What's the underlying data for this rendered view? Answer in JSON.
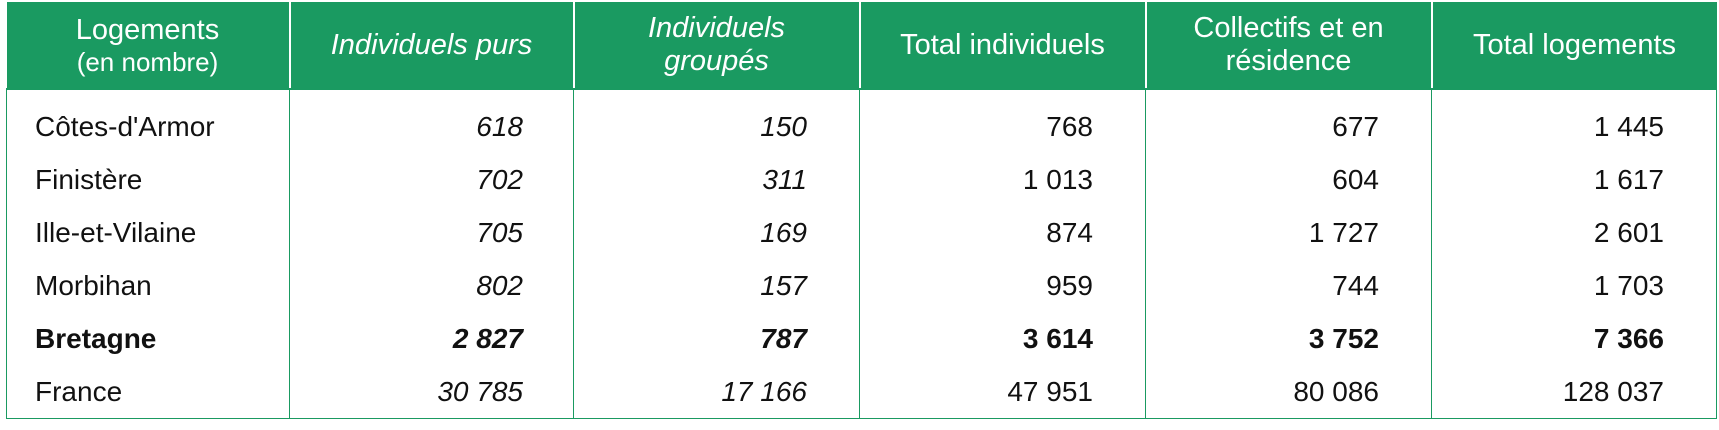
{
  "table": {
    "headers": [
      {
        "label": "Logements",
        "sub": "(en nombre)"
      },
      {
        "label": "Individuels purs",
        "sub": ""
      },
      {
        "label": "Individuels groupés",
        "sub": ""
      },
      {
        "label": "Total individuels",
        "sub": ""
      },
      {
        "label": "Collectifs et en résidence",
        "sub": ""
      },
      {
        "label": "Total logements",
        "sub": ""
      }
    ],
    "rows": [
      {
        "name": "Côtes-d'Armor",
        "values": [
          "618",
          "150",
          "768",
          "677",
          "1 445"
        ]
      },
      {
        "name": "Finistère",
        "values": [
          "702",
          "311",
          "1 013",
          "604",
          "1 617"
        ]
      },
      {
        "name": "Ille-et-Vilaine",
        "values": [
          "705",
          "169",
          "874",
          "1 727",
          "2 601"
        ]
      },
      {
        "name": "Morbihan",
        "values": [
          "802",
          "157",
          "959",
          "744",
          "1 703"
        ]
      },
      {
        "name": "Bretagne",
        "values": [
          "2 827",
          "787",
          "3 614",
          "3 752",
          "7 366"
        ]
      },
      {
        "name": "France",
        "values": [
          "30 785",
          "17 166",
          "47 951",
          "80 086",
          "128 037"
        ]
      }
    ]
  },
  "colors": {
    "header_bg": "#1a9a61",
    "header_text": "#ffffff",
    "border": "#1a9a61"
  }
}
